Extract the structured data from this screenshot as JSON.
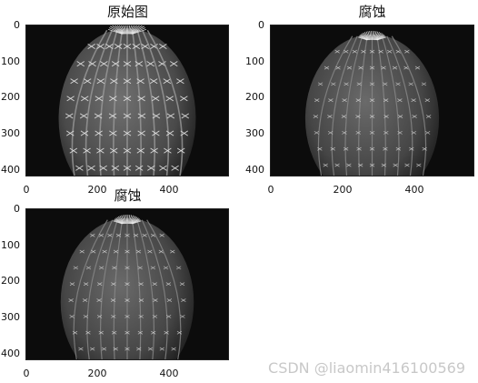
{
  "panels": [
    {
      "title": "原始图",
      "yticks": [
        "0",
        "100",
        "200",
        "300",
        "400"
      ],
      "xticks": [
        "0",
        "200",
        "400"
      ],
      "variant": "original"
    },
    {
      "title": "腐蚀",
      "yticks": [
        "0",
        "100",
        "200",
        "300",
        "400"
      ],
      "xticks": [
        "0",
        "200",
        "400"
      ],
      "variant": "eroded"
    },
    {
      "title": "腐蚀",
      "yticks": [
        "0",
        "100",
        "200",
        "300",
        "400"
      ],
      "xticks": [
        "0",
        "200",
        "400"
      ],
      "variant": "eroded"
    }
  ],
  "watermark": "CSDN @liaomin416100569",
  "colors": {
    "image_background": "#0c0c0c",
    "cactus_body": "#5a5a5a",
    "spines": "#e6e6e6"
  }
}
